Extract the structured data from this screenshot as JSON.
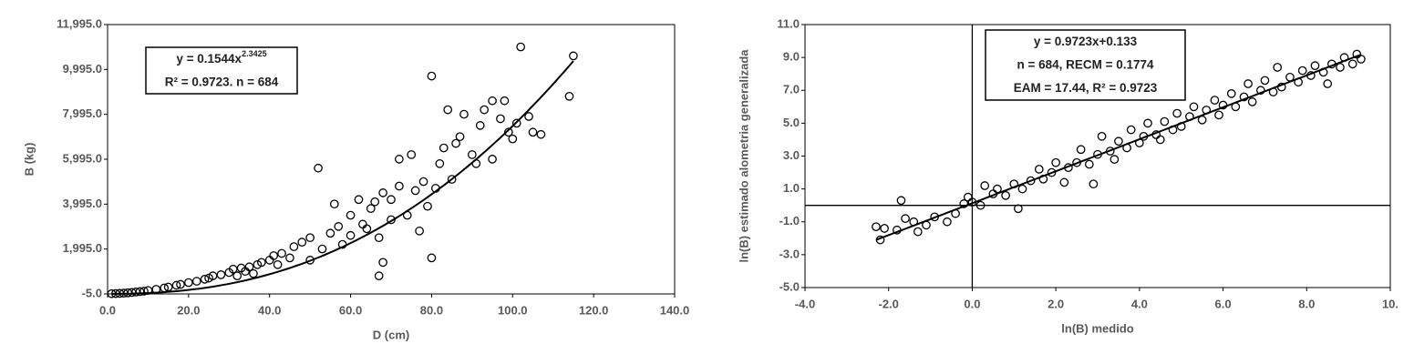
{
  "chart_data": [
    {
      "type": "scatter",
      "x_label": "D (cm)",
      "y_label": "B (kg)",
      "annotation": {
        "line1": "y = 0.1544x",
        "line1_sup": "2.3425",
        "line2": "R² = 0.9723. n = 684"
      },
      "trendline": {
        "type": "power",
        "coef": 0.1544,
        "exp": 2.3425
      },
      "xlim": [
        0,
        140
      ],
      "ylim": [
        -5,
        11995
      ],
      "xticks": [
        {
          "value": 0,
          "label": "0.0"
        },
        {
          "value": 20,
          "label": "20.0"
        },
        {
          "value": 40,
          "label": "40.0"
        },
        {
          "value": 60,
          "label": "60.0"
        },
        {
          "value": 80,
          "label": "80.0"
        },
        {
          "value": 100,
          "label": "100.0"
        },
        {
          "value": 120,
          "label": "120.0"
        },
        {
          "value": 140,
          "label": "140.0"
        }
      ],
      "yticks": [
        {
          "value": -5,
          "label": "-5.0"
        },
        {
          "value": 1995,
          "label": "1,995.0"
        },
        {
          "value": 3995,
          "label": "3,995.0"
        },
        {
          "value": 5995,
          "label": "5,995.0"
        },
        {
          "value": 7995,
          "label": "7,995.0"
        },
        {
          "value": 9995,
          "label": "9,995.0"
        },
        {
          "value": 11995,
          "label": "11,995.0"
        }
      ],
      "zero_lines": false,
      "x": [
        1,
        2,
        3,
        4,
        5,
        6,
        7,
        8,
        9,
        10,
        12,
        14,
        15,
        17,
        18,
        20,
        22,
        24,
        25,
        26,
        28,
        30,
        31,
        32,
        33,
        34,
        35,
        36,
        37,
        38,
        40,
        41,
        42,
        43,
        45,
        46,
        48,
        50,
        50,
        52,
        53,
        55,
        56,
        57,
        58,
        60,
        60,
        62,
        63,
        64,
        65,
        66,
        67,
        67,
        68,
        68,
        70,
        70,
        72,
        72,
        74,
        75,
        76,
        77,
        78,
        79,
        80,
        80,
        81,
        82,
        83,
        84,
        85,
        86,
        87,
        88,
        90,
        91,
        92,
        93,
        95,
        95,
        97,
        98,
        99,
        100,
        101,
        102,
        104,
        105,
        107,
        114,
        115
      ],
      "values": [
        5,
        10,
        20,
        30,
        45,
        60,
        80,
        100,
        120,
        150,
        200,
        260,
        300,
        380,
        420,
        500,
        560,
        650,
        700,
        800,
        850,
        950,
        1100,
        800,
        1150,
        1000,
        1200,
        900,
        1300,
        1400,
        1500,
        1700,
        1300,
        1800,
        1600,
        2100,
        2300,
        2500,
        1500,
        5600,
        2000,
        2700,
        4000,
        3000,
        2200,
        3500,
        2600,
        4200,
        3100,
        2900,
        3800,
        4100,
        800,
        2500,
        1400,
        4500,
        4200,
        3300,
        6000,
        4800,
        3500,
        6200,
        4600,
        2800,
        5000,
        3900,
        9700,
        1600,
        4700,
        5800,
        6500,
        8200,
        5100,
        6700,
        7000,
        8000,
        6200,
        5800,
        7500,
        8200,
        8600,
        6000,
        7800,
        8600,
        7200,
        6900,
        7600,
        11000,
        7900,
        7200,
        7100,
        8800,
        10600
      ]
    },
    {
      "type": "scatter",
      "x_label": "ln(B) medido",
      "y_label": "ln(B) estimado alometria generalizada",
      "annotation": {
        "line1": "y = 0.9723x+0.133",
        "line2": "n = 684, RECM = 0.1774",
        "line3": "EAM = 17.44, R² = 0.9723"
      },
      "trendline": {
        "type": "linear",
        "slope": 0.9723,
        "intercept": 0.133
      },
      "xlim": [
        -4,
        10
      ],
      "ylim": [
        -5,
        11
      ],
      "xticks": [
        {
          "value": -4,
          "label": "-4.0"
        },
        {
          "value": -2,
          "label": "-2.0"
        },
        {
          "value": 0,
          "label": "0.0"
        },
        {
          "value": 2,
          "label": "2.0"
        },
        {
          "value": 4,
          "label": "4.0"
        },
        {
          "value": 6,
          "label": "6.0"
        },
        {
          "value": 8,
          "label": "8.0"
        },
        {
          "value": 10,
          "label": "10."
        }
      ],
      "yticks": [
        {
          "value": -5,
          "label": "-5.0"
        },
        {
          "value": -3,
          "label": "-3.0"
        },
        {
          "value": -1,
          "label": "-1.0"
        },
        {
          "value": 1,
          "label": "1.0"
        },
        {
          "value": 3,
          "label": "3.0"
        },
        {
          "value": 5,
          "label": "5.0"
        },
        {
          "value": 7,
          "label": "7.0"
        },
        {
          "value": 9,
          "label": "9.0"
        },
        {
          "value": 11,
          "label": "11.0"
        }
      ],
      "zero_lines": true,
      "x": [
        -2.3,
        -2.2,
        -2.1,
        -1.8,
        -1.7,
        -1.6,
        -1.4,
        -1.3,
        -1.1,
        -0.9,
        -0.6,
        -0.4,
        -0.2,
        -0.1,
        0.0,
        0.2,
        0.3,
        0.5,
        0.6,
        0.8,
        1.0,
        1.1,
        1.2,
        1.4,
        1.6,
        1.7,
        1.9,
        2.0,
        2.2,
        2.3,
        2.5,
        2.6,
        2.8,
        2.9,
        3.0,
        3.1,
        3.3,
        3.4,
        3.5,
        3.7,
        3.8,
        4.0,
        4.1,
        4.2,
        4.4,
        4.5,
        4.6,
        4.8,
        4.9,
        5.0,
        5.2,
        5.3,
        5.5,
        5.6,
        5.8,
        5.9,
        6.0,
        6.2,
        6.3,
        6.5,
        6.6,
        6.7,
        6.9,
        7.0,
        7.2,
        7.3,
        7.4,
        7.6,
        7.8,
        7.9,
        8.1,
        8.2,
        8.4,
        8.5,
        8.6,
        8.8,
        8.9,
        9.1,
        9.2,
        9.3
      ],
      "values": [
        -1.3,
        -2.1,
        -1.4,
        -1.5,
        0.3,
        -0.8,
        -1.0,
        -1.6,
        -1.2,
        -0.7,
        -1.0,
        -0.5,
        0.1,
        0.5,
        0.2,
        0.0,
        1.2,
        0.7,
        1.0,
        0.6,
        1.3,
        -0.2,
        1.0,
        1.5,
        2.2,
        1.6,
        2.0,
        2.6,
        1.4,
        2.3,
        2.6,
        3.4,
        2.5,
        1.3,
        3.1,
        4.2,
        3.3,
        2.8,
        3.9,
        3.5,
        4.6,
        3.8,
        4.2,
        5.0,
        4.3,
        4.0,
        5.1,
        4.6,
        5.6,
        4.8,
        5.4,
        6.0,
        5.2,
        5.8,
        6.4,
        5.5,
        6.1,
        6.8,
        6.0,
        6.6,
        7.4,
        6.3,
        7.0,
        7.6,
        6.9,
        8.4,
        7.2,
        7.8,
        7.5,
        8.2,
        7.9,
        8.5,
        8.1,
        7.4,
        8.6,
        8.4,
        9.0,
        8.6,
        9.2,
        8.9
      ]
    }
  ]
}
